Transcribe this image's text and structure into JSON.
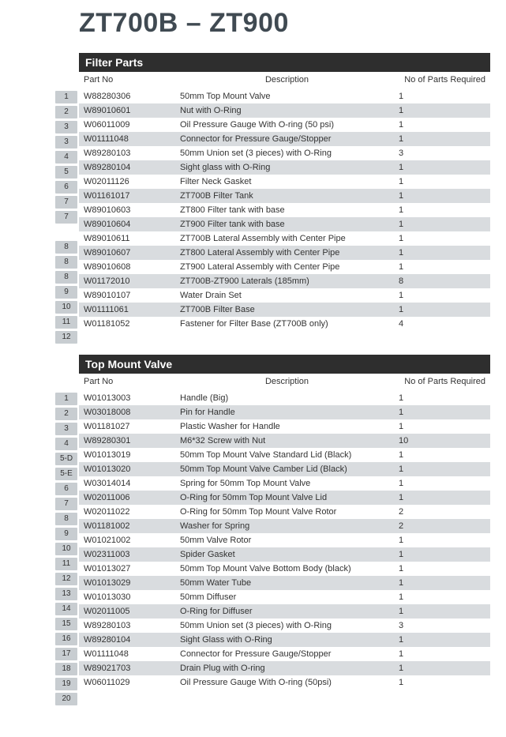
{
  "title": "ZT700B – ZT900",
  "columns": {
    "part": "Part No",
    "desc": "Description",
    "qty": "No of Parts Required"
  },
  "colors": {
    "title": "#404a52",
    "header_bg": "#2e2e2e",
    "header_fg": "#ffffff",
    "row_shade": "#d9dcdf",
    "badge_bg": "#c8cdd1",
    "text": "#333333",
    "page_bg": "#ffffff"
  },
  "sections": [
    {
      "title": "Filter Parts",
      "rows": [
        {
          "idx": "1",
          "part": "W88280306",
          "desc": "50mm Top Mount Valve",
          "qty": "1",
          "shaded": false
        },
        {
          "idx": "2",
          "part": "W89010601",
          "desc": "Nut with O-Ring",
          "qty": "1",
          "shaded": true
        },
        {
          "idx": "3",
          "part": "W06011009",
          "desc": "Oil Pressure Gauge With O-ring (50 psi)",
          "qty": "1",
          "shaded": false
        },
        {
          "idx": "3",
          "part": "W01111048",
          "desc": "Connector for Pressure Gauge/Stopper",
          "qty": "1",
          "shaded": true
        },
        {
          "idx": "4",
          "part": "W89280103",
          "desc": "50mm Union set (3 pieces) with O-Ring",
          "qty": "3",
          "shaded": false
        },
        {
          "idx": "5",
          "part": "W89280104",
          "desc": "Sight glass with O-Ring",
          "qty": "1",
          "shaded": true
        },
        {
          "idx": "6",
          "part": "W02011126",
          "desc": "Filter Neck Gasket",
          "qty": "1",
          "shaded": false
        },
        {
          "idx": "7",
          "part": "W01161017",
          "desc": "ZT700B Filter Tank",
          "qty": "1",
          "shaded": true
        },
        {
          "idx": "7",
          "part": "W89010603",
          "desc": "ZT800 Filter tank with base",
          "qty": "1",
          "shaded": false
        },
        {
          "idx": "",
          "part": "W89010604",
          "desc": "ZT900 Filter tank with base",
          "qty": "1",
          "shaded": true
        },
        {
          "idx": "8",
          "part": "W89010611",
          "desc": "ZT700B Lateral Assembly with Center Pipe",
          "qty": "1",
          "shaded": false
        },
        {
          "idx": "8",
          "part": "W89010607",
          "desc": "ZT800 Lateral Assembly with Center Pipe",
          "qty": "1",
          "shaded": true
        },
        {
          "idx": "8",
          "part": "W89010608",
          "desc": "ZT900 Lateral Assembly with Center Pipe",
          "qty": "1",
          "shaded": false
        },
        {
          "idx": "9",
          "part": "W01172010",
          "desc": "ZT700B-ZT900 Laterals (185mm)",
          "qty": "8",
          "shaded": true
        },
        {
          "idx": "10",
          "part": "W89010107",
          "desc": "Water Drain Set",
          "qty": "1",
          "shaded": false
        },
        {
          "idx": "11",
          "part": "W01111061",
          "desc": "ZT700B Filter Base",
          "qty": "1",
          "shaded": true
        },
        {
          "idx": "12",
          "part": "W01181052",
          "desc": "Fastener for Filter Base (ZT700B only)",
          "qty": "4",
          "shaded": false
        }
      ]
    },
    {
      "title": "Top Mount Valve",
      "rows": [
        {
          "idx": "1",
          "part": "W01013003",
          "desc": "Handle (Big)",
          "qty": "1",
          "shaded": false
        },
        {
          "idx": "2",
          "part": "W03018008",
          "desc": "Pin for Handle",
          "qty": "1",
          "shaded": true
        },
        {
          "idx": "3",
          "part": "W01181027",
          "desc": "Plastic Washer for Handle",
          "qty": "1",
          "shaded": false
        },
        {
          "idx": "4",
          "part": "W89280301",
          "desc": "M6*32 Screw with Nut",
          "qty": "10",
          "shaded": true
        },
        {
          "idx": "5-D",
          "part": "W01013019",
          "desc": "50mm Top Mount Valve Standard Lid (Black)",
          "qty": "1",
          "shaded": false
        },
        {
          "idx": "5-E",
          "part": "W01013020",
          "desc": "50mm Top Mount Valve Camber Lid (Black)",
          "qty": "1",
          "shaded": true
        },
        {
          "idx": "6",
          "part": "W03014014",
          "desc": "Spring for 50mm Top Mount Valve",
          "qty": "1",
          "shaded": false
        },
        {
          "idx": "7",
          "part": "W02011006",
          "desc": "O-Ring for 50mm Top Mount Valve Lid",
          "qty": "1",
          "shaded": true
        },
        {
          "idx": "8",
          "part": "W02011022",
          "desc": "O-Ring for 50mm Top Mount Valve Rotor",
          "qty": "2",
          "shaded": false
        },
        {
          "idx": "9",
          "part": "W01181002",
          "desc": "Washer for Spring",
          "qty": "2",
          "shaded": true
        },
        {
          "idx": "10",
          "part": "W01021002",
          "desc": "50mm Valve Rotor",
          "qty": "1",
          "shaded": false
        },
        {
          "idx": "11",
          "part": "W02311003",
          "desc": "Spider Gasket",
          "qty": "1",
          "shaded": true
        },
        {
          "idx": "12",
          "part": "W01013027",
          "desc": "50mm Top Mount Valve Bottom Body (black)",
          "qty": "1",
          "shaded": false
        },
        {
          "idx": "13",
          "part": "W01013029",
          "desc": "50mm Water Tube",
          "qty": "1",
          "shaded": true
        },
        {
          "idx": "14",
          "part": "W01013030",
          "desc": "50mm Diffuser",
          "qty": "1",
          "shaded": false
        },
        {
          "idx": "15",
          "part": "W02011005",
          "desc": "O-Ring for Diffuser",
          "qty": "1",
          "shaded": true
        },
        {
          "idx": "16",
          "part": "W89280103",
          "desc": "50mm Union set (3 pieces) with O-Ring",
          "qty": "3",
          "shaded": false
        },
        {
          "idx": "17",
          "part": "W89280104",
          "desc": "Sight Glass with O-Ring",
          "qty": "1",
          "shaded": true
        },
        {
          "idx": "18",
          "part": "W01111048",
          "desc": "Connector for Pressure Gauge/Stopper",
          "qty": "1",
          "shaded": false
        },
        {
          "idx": "19",
          "part": "W89021703",
          "desc": "Drain Plug with O-ring",
          "qty": "1",
          "shaded": true
        },
        {
          "idx": "20",
          "part": "W06011029",
          "desc": "Oil Pressure Gauge With O-ring (50psi)",
          "qty": "1",
          "shaded": false
        }
      ]
    }
  ]
}
